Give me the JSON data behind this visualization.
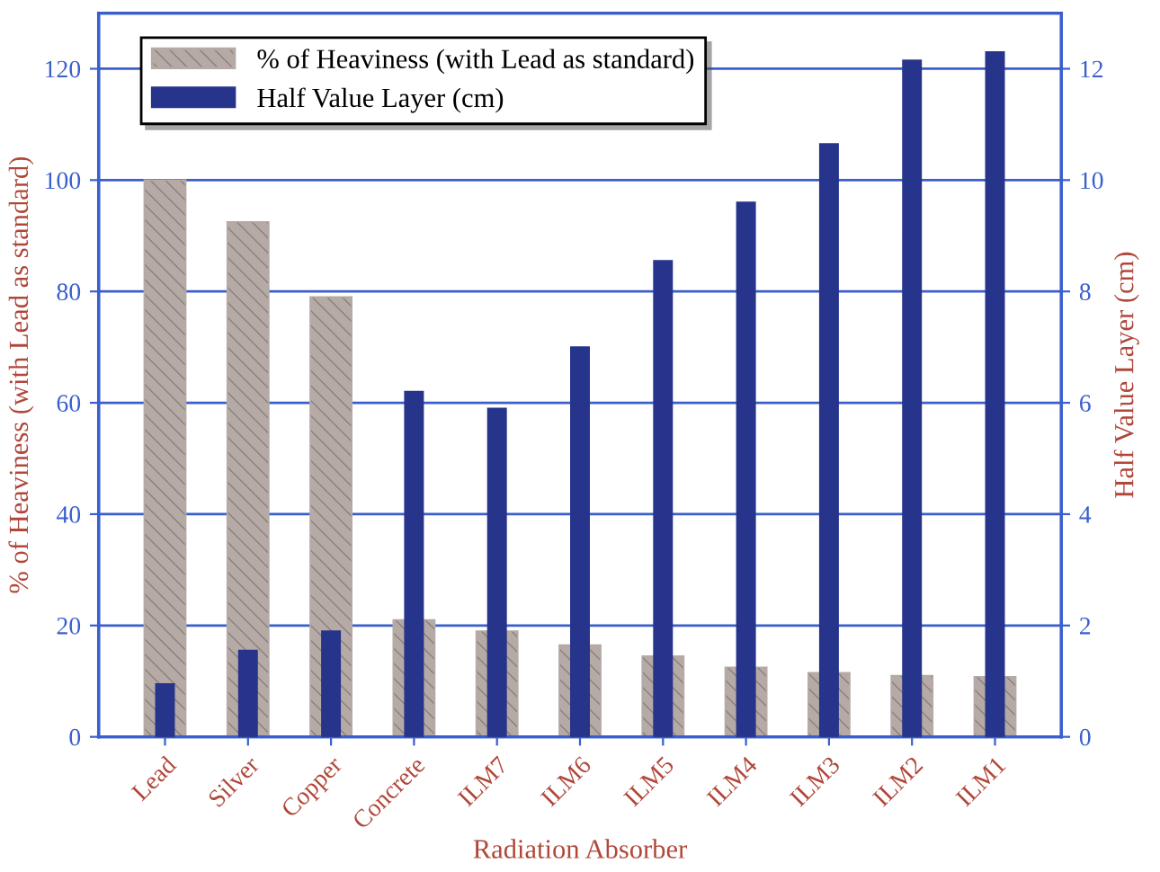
{
  "chart_data": {
    "type": "bar",
    "xlabel": "Radiation Absorber",
    "ylabel": "% of Heaviness (with Lead as standard)",
    "y2label": "Half Value Layer (cm)",
    "categories": [
      "Lead",
      "Silver",
      "Copper",
      "Concrete",
      "ILM7",
      "ILM6",
      "ILM5",
      "ILM4",
      "ILM3",
      "ILM2",
      "ILM1"
    ],
    "series": [
      {
        "name": "% of Heaviness (with Lead as standard)",
        "color": "#b5aaa5",
        "values": [
          100,
          92.5,
          79,
          21,
          19,
          16.5,
          14.5,
          12.5,
          11.5,
          11,
          10.8
        ]
      },
      {
        "name": "Half Value Layer (cm)",
        "color": "#27348b",
        "axis": "y2",
        "values": [
          0.95,
          1.55,
          1.9,
          6.2,
          5.9,
          7.0,
          8.55,
          9.6,
          10.65,
          12.15,
          12.3
        ]
      }
    ],
    "ylim": [
      0,
      130
    ],
    "yticks": [
      0,
      20,
      40,
      60,
      80,
      100,
      120
    ],
    "y2lim": [
      0,
      13
    ],
    "y2ticks": [
      0,
      2,
      4,
      6,
      8,
      10,
      12
    ],
    "grid": "y",
    "legend": "top left"
  }
}
